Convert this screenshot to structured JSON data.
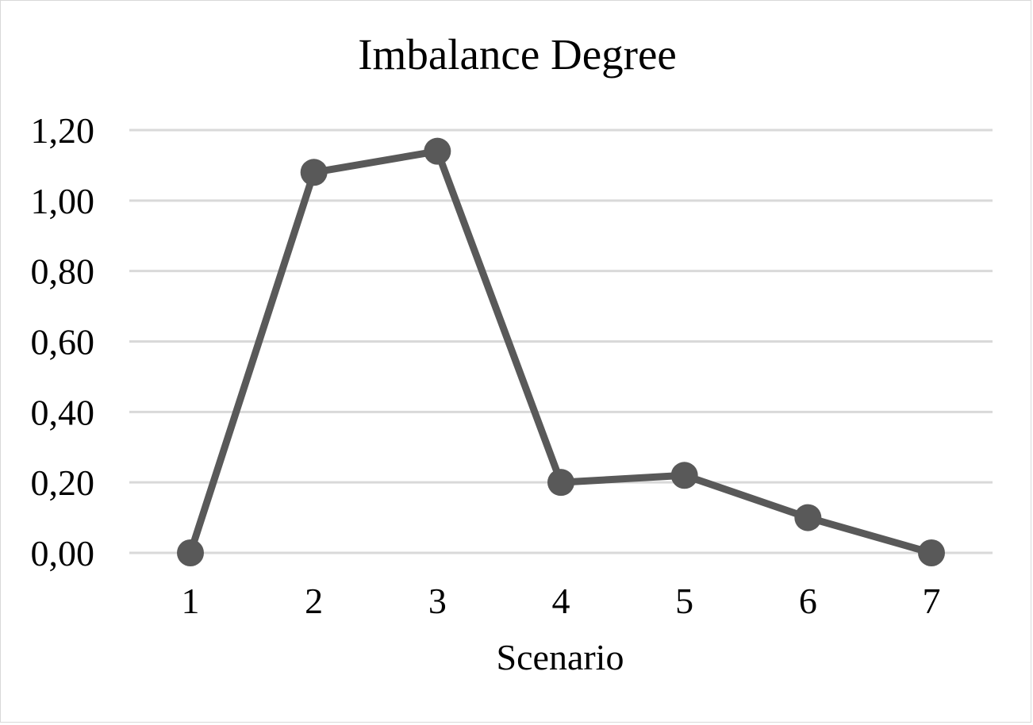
{
  "chart_data": {
    "type": "line",
    "title": "Imbalance Degree",
    "xlabel": "Scenario",
    "ylabel": "",
    "categories": [
      "1",
      "2",
      "3",
      "4",
      "5",
      "6",
      "7"
    ],
    "series": [
      {
        "values": [
          0.0,
          1.08,
          1.14,
          0.2,
          0.22,
          0.1,
          0.0
        ],
        "color": "#595959"
      }
    ],
    "ylim": [
      0,
      1.2
    ],
    "yticks": [
      0.0,
      0.2,
      0.4,
      0.6,
      0.8,
      1.0,
      1.2
    ],
    "ytick_labels": [
      "0,00",
      "0,20",
      "0,40",
      "0,60",
      "0,80",
      "1,00",
      "1,20"
    ],
    "grid": true,
    "gridline_color": "#d9d9d9",
    "legend": "none"
  }
}
